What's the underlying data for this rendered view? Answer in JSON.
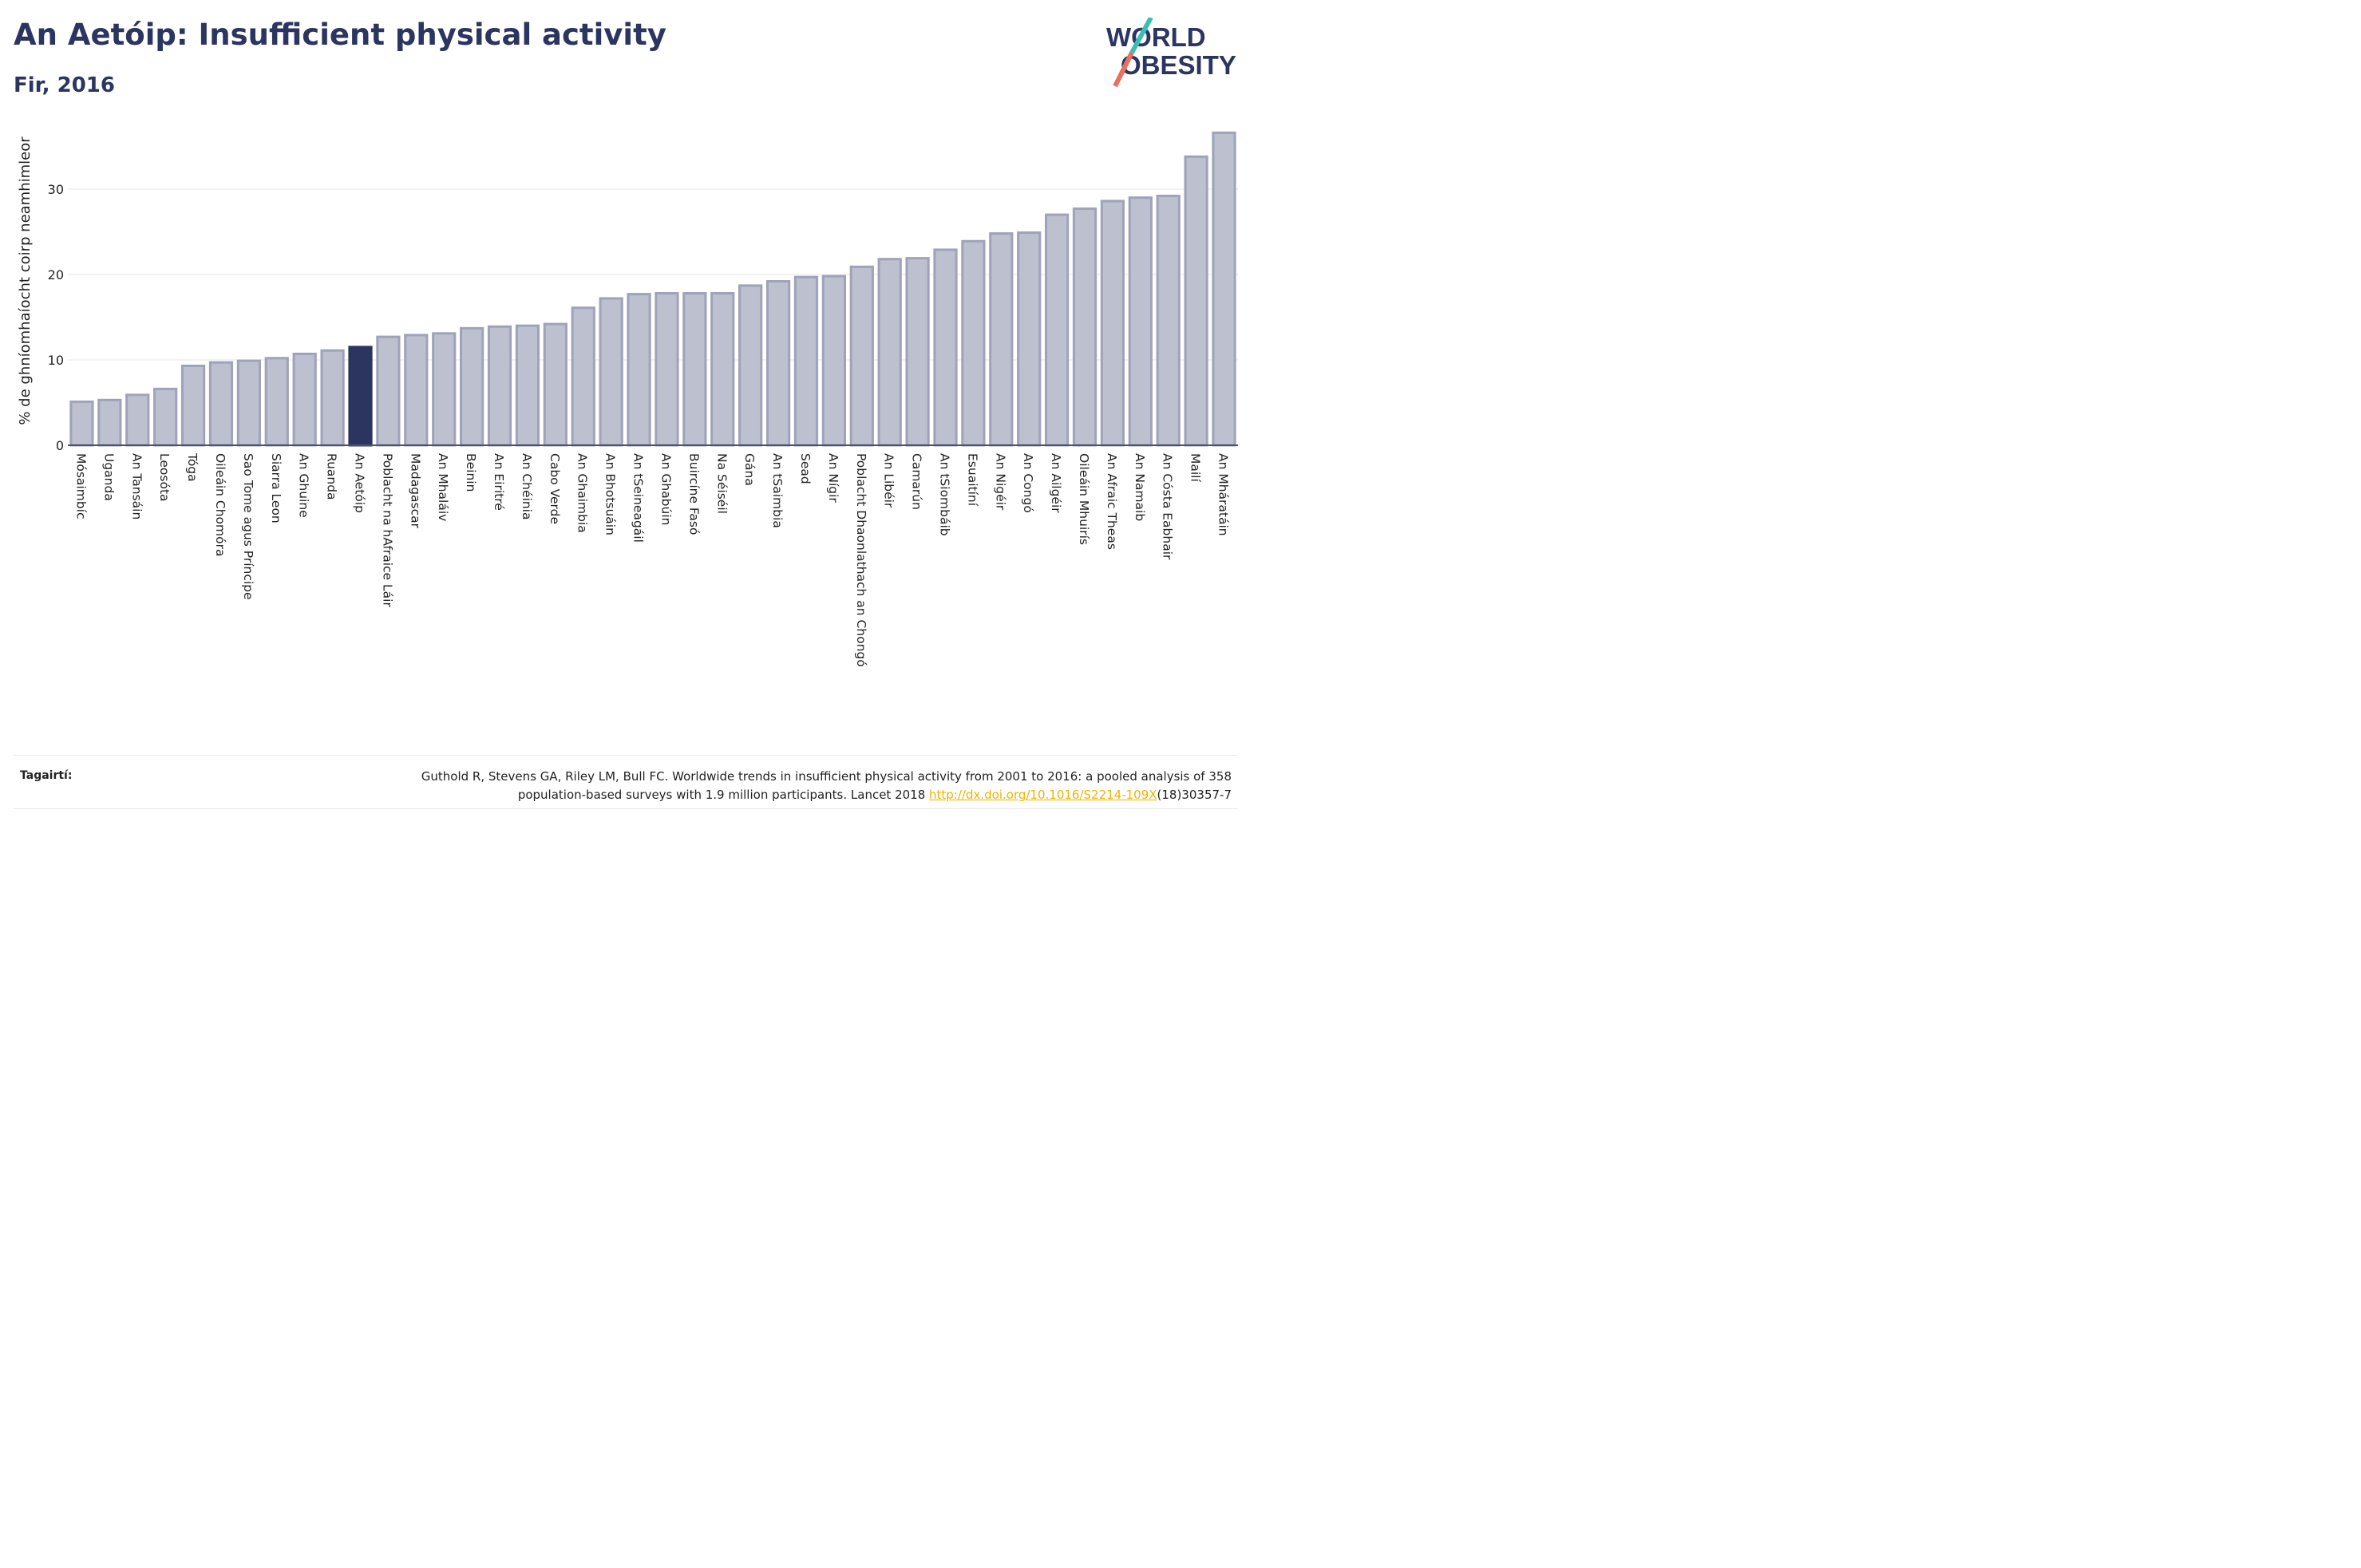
{
  "header": {
    "title": "An Aetóip: Insufficient physical activity",
    "subtitle": "Fir, 2016"
  },
  "logo": {
    "line1": "WORLD",
    "line2": "OBESITY",
    "colors": {
      "text": "#2b3560",
      "slash_top": "#3bbfb5",
      "slash_bottom": "#e8705e"
    }
  },
  "colors": {
    "bar": "#bcc0cf",
    "bar_border": "#9ea3ba",
    "highlight": "#2b3560"
  },
  "chart_data": {
    "type": "bar",
    "ylabel": "% de ghníomhaíocht coirp neamhimleor",
    "ylim": [
      0,
      38.5
    ],
    "yticks": [
      0,
      10,
      20,
      30
    ],
    "grid": true,
    "highlight": "An Aetóip",
    "categories": [
      "Mósaimbíc",
      "Uganda",
      "An Tansáin",
      "Leosóta",
      "Tóga",
      "Oileáin Chomóra",
      "Sao Tome agus Príncipe",
      "Siarra Leon",
      "An Ghuine",
      "Ruanda",
      "An Aetóip",
      "Poblacht na hAfraice Láir",
      "Madagascar",
      "An Mhaláiv",
      "Beinin",
      "An Eiritré",
      "An Chéinia",
      "Cabo Verde",
      "An Ghaimbia",
      "An Bhotsuáin",
      "An tSeineagáil",
      "An Ghabúin",
      "Buircíne Fasó",
      "Na Séiséil",
      "Gána",
      "An tSaimbia",
      "Sead",
      "An Nígir",
      "Poblacht Dhaonlathach an Chongó",
      "An Libéir",
      "Camarún",
      "An tSiombáib",
      "Esuaitíní",
      "An Nigéir",
      "An Congó",
      "An Ailgéir",
      "Oileáin Mhuirís",
      "An Afraic Theas",
      "An Namaib",
      "An Cósta Eabhair",
      "Mailí",
      "An Mháratáin"
    ],
    "values": [
      5.1,
      5.3,
      5.9,
      6.6,
      9.3,
      9.7,
      9.9,
      10.2,
      10.7,
      11.1,
      11.5,
      12.7,
      12.9,
      13.1,
      13.7,
      13.9,
      14.0,
      14.2,
      16.1,
      17.2,
      17.7,
      17.8,
      17.8,
      17.8,
      18.7,
      19.2,
      19.7,
      19.8,
      20.9,
      21.8,
      21.9,
      22.9,
      23.9,
      24.8,
      24.9,
      27.0,
      27.7,
      28.6,
      29.0,
      29.2,
      33.8,
      36.6
    ]
  },
  "footer": {
    "label": "Tagairtí:",
    "citation_line1": "Guthold R, Stevens GA, Riley LM, Bull FC. Worldwide trends in insufficient physical activity from 2001 to 2016: a pooled analysis of 358",
    "citation_line2_pre": "population-based surveys with 1.9 million participants. Lancet 2018 ",
    "citation_link": "http://dx.doi.org/10.1016/S2214-109X",
    "citation_line2_post": "(18)30357-7"
  }
}
